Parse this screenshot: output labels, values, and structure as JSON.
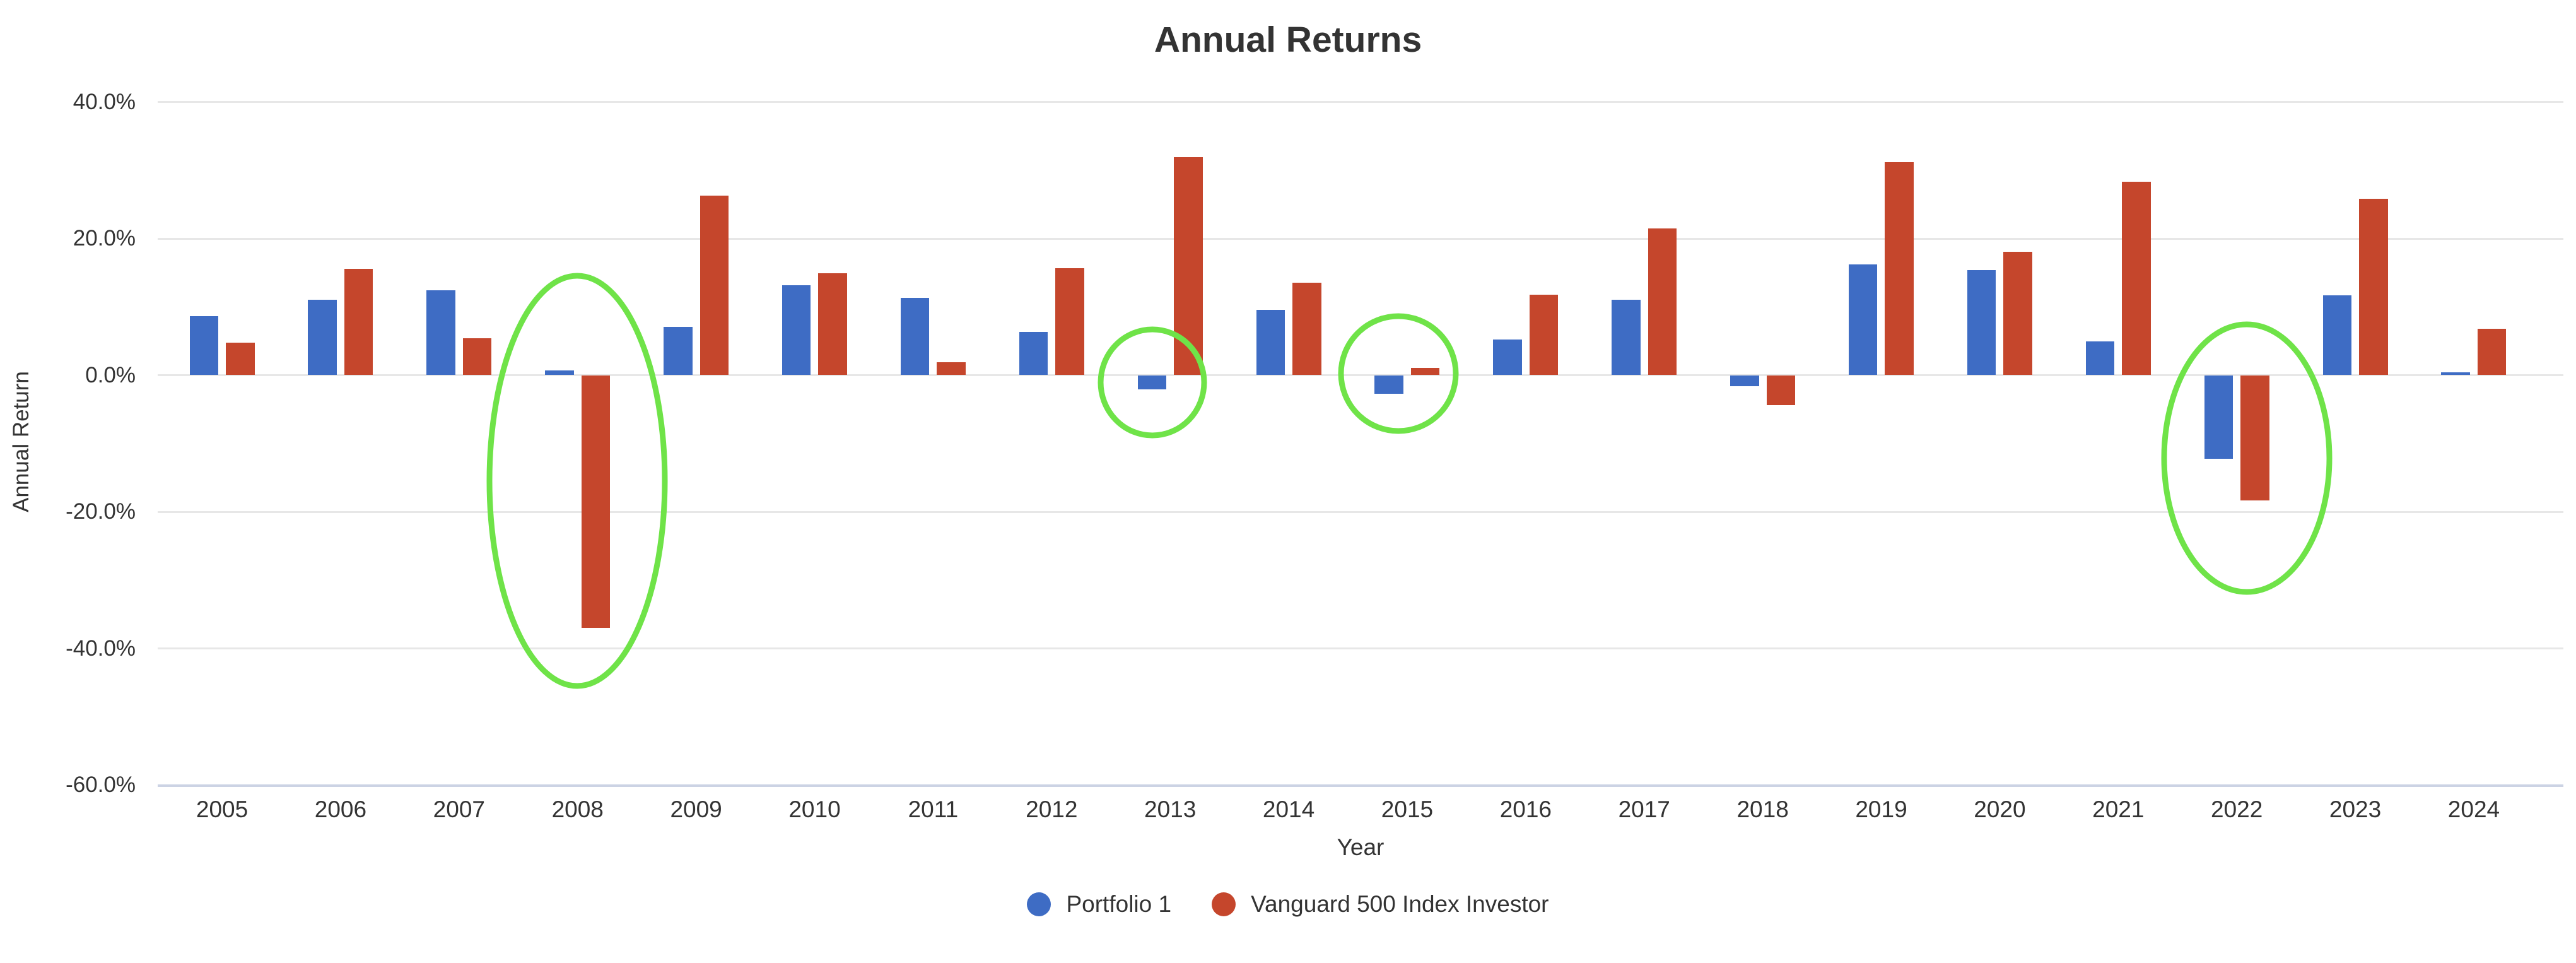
{
  "title": "Annual Returns",
  "y_axis": {
    "title": "Annual Return",
    "ticks": [
      {
        "label": "40.0%",
        "value": 40
      },
      {
        "label": "20.0%",
        "value": 20
      },
      {
        "label": "0.0%",
        "value": 0
      },
      {
        "label": "-20.0%",
        "value": -20
      },
      {
        "label": "-40.0%",
        "value": -40
      },
      {
        "label": "-60.0%",
        "value": -60
      }
    ]
  },
  "x_axis": {
    "title": "Year"
  },
  "legend": [
    {
      "label": "Portfolio 1",
      "color": "#3e6cc4"
    },
    {
      "label": "Vanguard 500 Index Investor",
      "color": "#c5462c"
    }
  ],
  "colors": {
    "portfolio1": "#3e6cc4",
    "vanguard500": "#c5462c",
    "highlight": "#6fe348",
    "gridline": "#e7e7e7",
    "axis_line": "#ccd3e4",
    "text": "#333333"
  },
  "chart_data": {
    "type": "bar",
    "title": "Annual Returns",
    "xlabel": "Year",
    "ylabel": "Annual Return",
    "ylim": [
      -60,
      40
    ],
    "grid": "horizontal",
    "legend_position": "bottom",
    "categories": [
      "2005",
      "2006",
      "2007",
      "2008",
      "2009",
      "2010",
      "2011",
      "2012",
      "2013",
      "2014",
      "2015",
      "2016",
      "2017",
      "2018",
      "2019",
      "2020",
      "2021",
      "2022",
      "2023",
      "2024"
    ],
    "series": [
      {
        "name": "Portfolio 1",
        "color": "#3e6cc4",
        "values": [
          8.6,
          11.0,
          12.4,
          0.7,
          7.1,
          13.2,
          11.3,
          6.3,
          -2.1,
          9.6,
          -2.7,
          5.2,
          11.0,
          -1.6,
          16.2,
          15.4,
          4.9,
          -12.2,
          11.7,
          0.4
        ]
      },
      {
        "name": "Vanguard 500 Index Investor",
        "color": "#c5462c",
        "values": [
          4.8,
          15.6,
          5.4,
          -37.0,
          26.3,
          14.9,
          1.9,
          15.7,
          31.9,
          13.5,
          1.1,
          11.8,
          21.5,
          -4.4,
          31.2,
          18.1,
          28.3,
          -18.3,
          25.8,
          6.8
        ]
      }
    ],
    "annotations": {
      "highlighted_years": [
        "2008",
        "2013",
        "2015",
        "2022"
      ],
      "shape": "ellipse",
      "color": "#6fe348"
    }
  }
}
